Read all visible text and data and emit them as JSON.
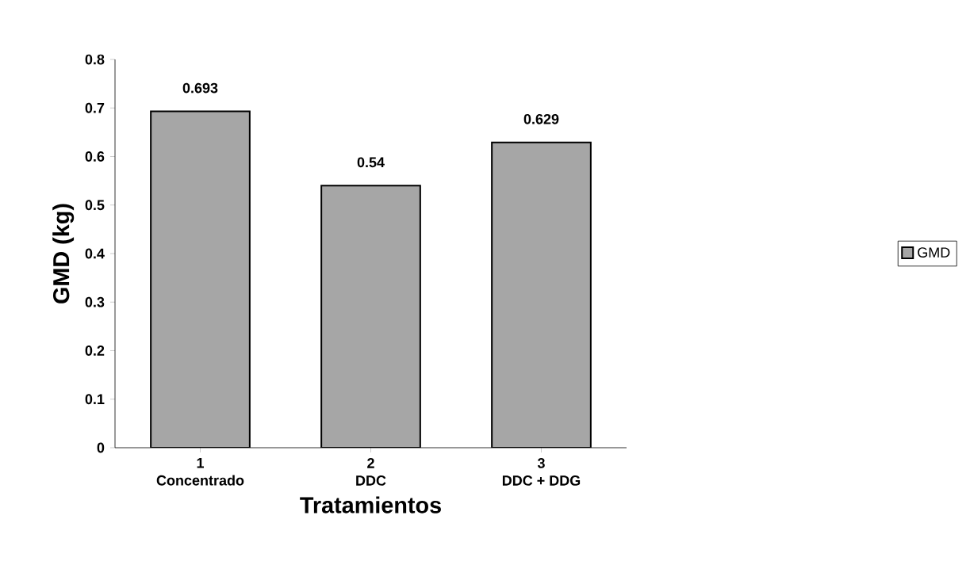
{
  "chart_data": {
    "type": "bar",
    "xlabel": "Tratamientos",
    "ylabel": "GMD (kg)",
    "categories": [
      "1\nConcentrado",
      "2\nDDC",
      "3\nDDC + DDG"
    ],
    "series": [
      {
        "name": "GMD",
        "color": "#a6a6a6",
        "values": [
          0.693,
          0.54,
          0.629
        ]
      }
    ],
    "ylim": [
      0,
      0.8
    ],
    "yticks": [
      0,
      0.1,
      0.2,
      0.3,
      0.4,
      0.5,
      0.6,
      0.7,
      0.8
    ],
    "data_labels": true,
    "legend": "right",
    "grid": false
  }
}
